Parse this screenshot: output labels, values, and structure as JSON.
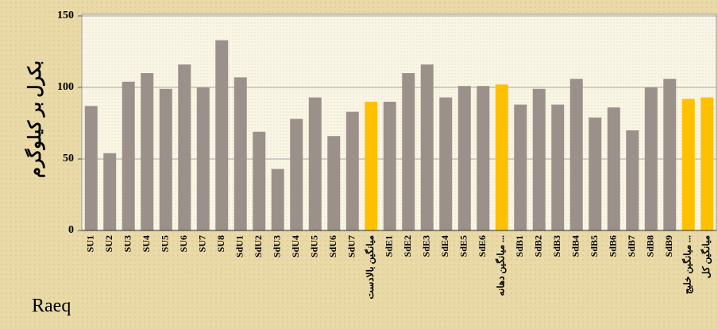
{
  "chart_data": {
    "type": "bar",
    "y_axis_label": "بکرل بر کیلوگرم",
    "x_axis_label": "Raeq",
    "categories": [
      "SU1",
      "SU2",
      "SU3",
      "SU4",
      "SU5",
      "SU6",
      "SU7",
      "SU8",
      "SdU1",
      "SdU2",
      "SdU3",
      "SdU4",
      "SdU5",
      "SdU6",
      "SdU7",
      "میانگین بالادست",
      "SdE1",
      "SdE2",
      "SdE3",
      "SdE4",
      "SdE5",
      "SdE6",
      "میانگین دهانه ...",
      "SdB1",
      "SdB2",
      "SdB3",
      "SdB4",
      "SdB5",
      "SdB6",
      "SdB7",
      "SdB8",
      "SdB9",
      "میانگین خلیج ...",
      "میانگین کل"
    ],
    "values": [
      87,
      54,
      104,
      110,
      99,
      116,
      100,
      133,
      107,
      69,
      43,
      78,
      93,
      66,
      83,
      90,
      90,
      110,
      116,
      93,
      101,
      101,
      102,
      88,
      99,
      88,
      106,
      79,
      86,
      70,
      100,
      106,
      92,
      93
    ],
    "colors": [
      "#9b918a",
      "#9b918a",
      "#9b918a",
      "#9b918a",
      "#9b918a",
      "#9b918a",
      "#9b918a",
      "#9b918a",
      "#9b918a",
      "#9b918a",
      "#9b918a",
      "#9b918a",
      "#9b918a",
      "#9b918a",
      "#9b918a",
      "#ffc000",
      "#9b918a",
      "#9b918a",
      "#9b918a",
      "#9b918a",
      "#9b918a",
      "#9b918a",
      "#ffc000",
      "#9b918a",
      "#9b918a",
      "#9b918a",
      "#9b918a",
      "#9b918a",
      "#9b918a",
      "#9b918a",
      "#9b918a",
      "#9b918a",
      "#ffc000",
      "#ffc000"
    ],
    "ylim": [
      0,
      150
    ],
    "yticks": [
      0,
      50,
      100,
      150
    ],
    "grid": true
  }
}
